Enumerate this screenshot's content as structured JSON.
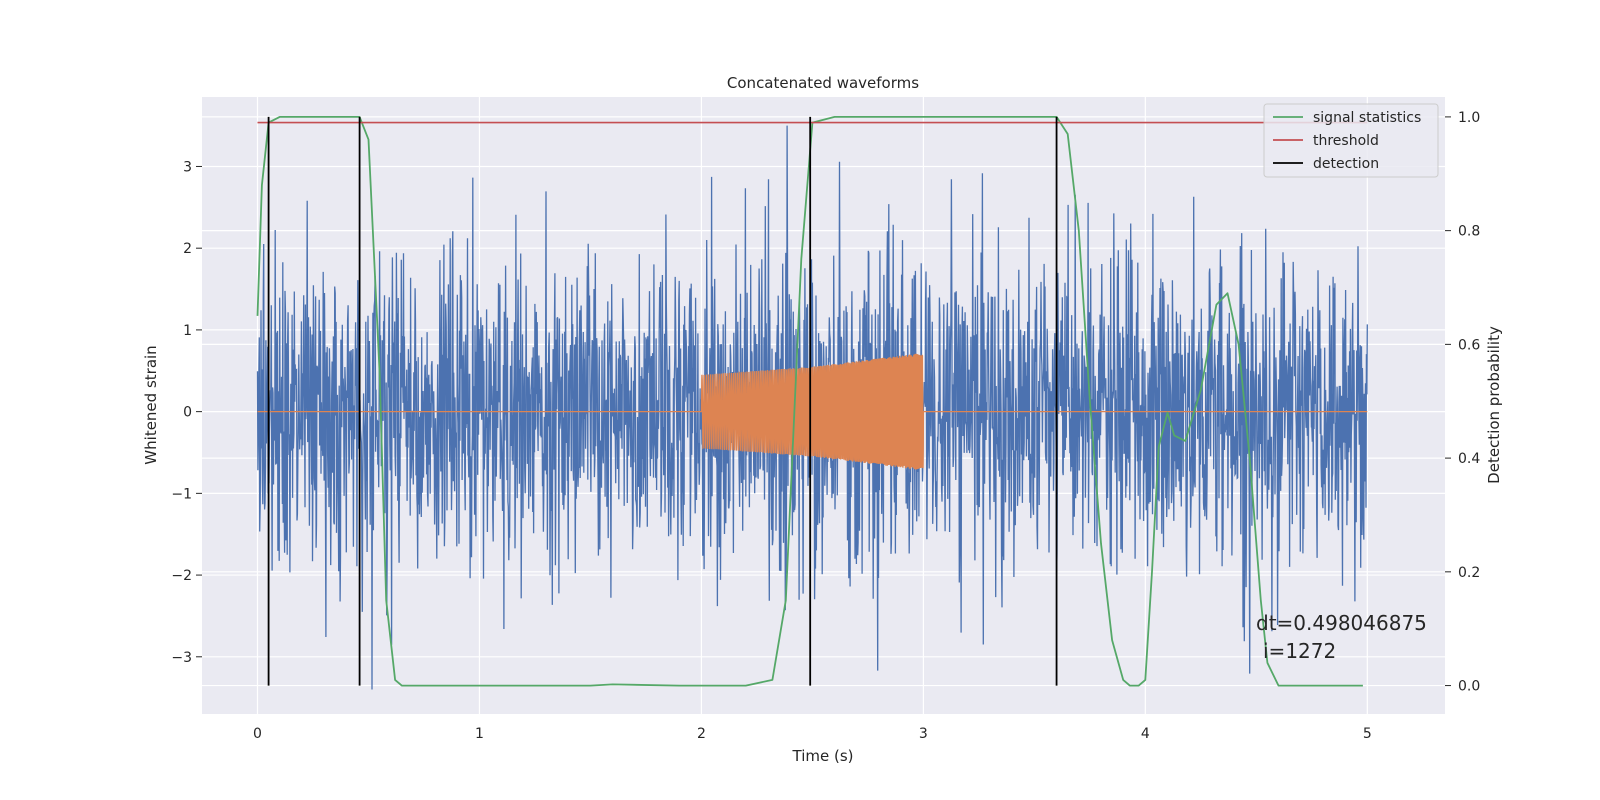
{
  "chart_data": {
    "type": "line",
    "title": "Concatenated waveforms",
    "xlabel": "Time (s)",
    "ylabel_left": "Whitened strain",
    "ylabel_right": "Detection probability",
    "xlim": [
      -0.25,
      5.35
    ],
    "ylim_left": [
      -3.7,
      3.85
    ],
    "ylim_right": [
      -0.05,
      1.035
    ],
    "x_ticks": [
      0,
      1,
      2,
      3,
      4,
      5
    ],
    "x_tick_labels": [
      "0",
      "1",
      "2",
      "3",
      "4",
      "5"
    ],
    "y_left_ticks": [
      3,
      2,
      1,
      0,
      -1,
      -2,
      -3
    ],
    "y_left_tick_labels": [
      "3",
      "2",
      "1",
      "0",
      "−1",
      "−2",
      "−3"
    ],
    "y_right_ticks": [
      1.0,
      0.8,
      0.6,
      0.4,
      0.2,
      0.0
    ],
    "y_right_tick_labels": [
      "1.0",
      "0.8",
      "0.6",
      "0.4",
      "0.2",
      "0.0"
    ],
    "grid": true,
    "legend_position": "top-right",
    "colors": {
      "background": "#eaeaf2",
      "grid": "#ffffff",
      "noise": "#4c72b0",
      "injection": "#dd8452",
      "signal_statistics": "#55a868",
      "threshold": "#c44e52",
      "detection": "#000000"
    },
    "series": [
      {
        "name": "",
        "axis": "left",
        "kind": "whitened strain noise",
        "x_range": [
          0.0,
          5.0
        ],
        "amplitude_range": [
          -3.4,
          3.5
        ]
      },
      {
        "name": "",
        "axis": "left",
        "kind": "injected chirp",
        "x": [
          0.0,
          2.0,
          2.0,
          2.5,
          3.0,
          3.0,
          5.0
        ],
        "envelope": [
          0.0,
          0.0,
          0.45,
          0.55,
          0.72,
          0.0,
          0.0
        ]
      },
      {
        "name": "signal statistics",
        "axis": "right",
        "x": [
          0.0,
          0.02,
          0.05,
          0.1,
          0.2,
          0.4,
          0.46,
          0.5,
          0.55,
          0.58,
          0.62,
          0.65,
          0.8,
          1.5,
          1.6,
          1.9,
          2.2,
          2.32,
          2.38,
          2.45,
          2.5,
          2.6,
          3.0,
          3.6,
          3.65,
          3.7,
          3.75,
          3.8,
          3.85,
          3.9,
          3.93,
          3.97,
          4.0,
          4.03,
          4.06,
          4.1,
          4.13,
          4.18,
          4.25,
          4.32,
          4.37,
          4.42,
          4.47,
          4.52,
          4.55,
          4.6,
          4.7,
          4.98
        ],
        "y": [
          0.65,
          0.88,
          0.99,
          1.0,
          1.0,
          1.0,
          1.0,
          0.96,
          0.55,
          0.15,
          0.01,
          0.0,
          0.0,
          0.0,
          0.002,
          0.0,
          0.0,
          0.01,
          0.15,
          0.75,
          0.99,
          1.0,
          1.0,
          1.0,
          0.97,
          0.8,
          0.5,
          0.25,
          0.08,
          0.01,
          0.0,
          0.0,
          0.01,
          0.2,
          0.42,
          0.48,
          0.44,
          0.43,
          0.52,
          0.67,
          0.69,
          0.6,
          0.4,
          0.15,
          0.04,
          0.0,
          0.0,
          0.0
        ]
      },
      {
        "name": "threshold",
        "axis": "right",
        "x": [
          0.0,
          5.0
        ],
        "y": [
          0.99,
          0.99
        ]
      },
      {
        "name": "detection",
        "axis": "right",
        "kind": "vertical lines",
        "x": [
          0.05,
          0.46,
          2.49,
          3.6
        ],
        "y_range": [
          0.0,
          1.0
        ]
      }
    ],
    "annotations": [
      "dt=0.498046875",
      "i=1272"
    ]
  }
}
